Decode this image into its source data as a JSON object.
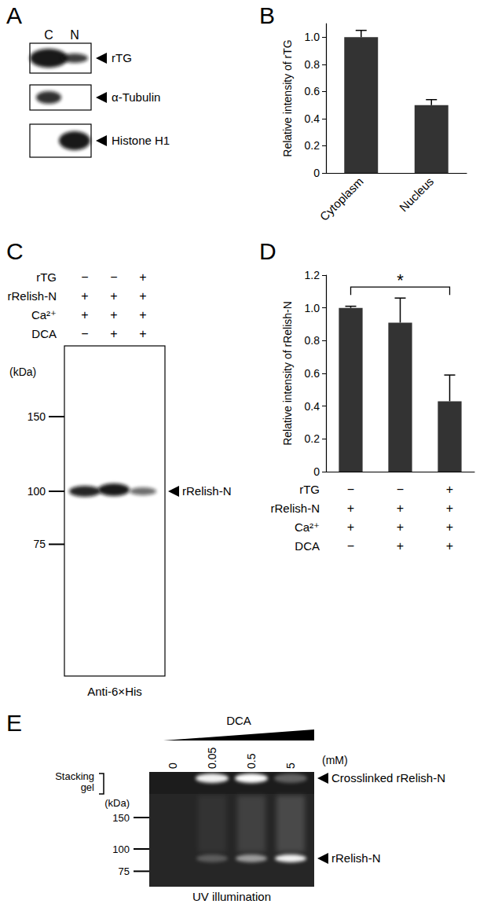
{
  "chart_data": [
    {
      "type": "bar",
      "panel": "B",
      "categories": [
        "Cytoplasm",
        "Nucleus"
      ],
      "values": [
        1.0,
        0.5
      ],
      "errors": [
        0.05,
        0.04
      ],
      "y_label": "Relative intensity of rTG",
      "ylim": [
        0,
        1.1
      ],
      "yticks": [
        0,
        0.2,
        0.4,
        0.6,
        0.8,
        {
          "value": 1,
          "label": "1.0"
        }
      ],
      "color": "#333333",
      "grid": false
    },
    {
      "type": "bar",
      "panel": "D",
      "categories": [
        null,
        null,
        null
      ],
      "values": [
        1.0,
        0.91,
        0.43
      ],
      "errors": [
        0.01,
        0.15,
        0.16
      ],
      "y_label": "Relative intensity of rRelish-N",
      "ylim": [
        0,
        1.2
      ],
      "yticks": [
        0,
        0.2,
        0.4,
        0.6,
        0.8,
        {
          "value": 1,
          "label": "1.0"
        },
        1.2
      ],
      "color": "#333333",
      "grid": false,
      "conditions": [
        {
          "label": "rTG",
          "marks": [
            "−",
            "−",
            "+"
          ]
        },
        {
          "label": "rRelish-N",
          "marks": [
            "+",
            "+",
            "+"
          ]
        },
        {
          "label": "Ca²⁺",
          "marks": [
            "+",
            "+",
            "+"
          ]
        },
        {
          "label": "DCA",
          "marks": [
            "−",
            "+",
            "+"
          ]
        }
      ],
      "significance": {
        "between": [
          0,
          2
        ],
        "label": "*"
      }
    }
  ],
  "blots": {
    "A": {
      "panel": "A",
      "lanes": [
        "C",
        "N"
      ],
      "rows": [
        {
          "label": "rTG",
          "present": [
            true,
            true
          ]
        },
        {
          "label": "α-Tubulin",
          "present": [
            true,
            false
          ]
        },
        {
          "label": "Histone H1",
          "present": [
            false,
            true
          ]
        }
      ]
    },
    "C": {
      "panel": "C",
      "conditions": [
        {
          "label": "rTG",
          "marks": [
            "−",
            "−",
            "+"
          ]
        },
        {
          "label": "rRelish-N",
          "marks": [
            "+",
            "+",
            "+"
          ]
        },
        {
          "label": "Ca²⁺",
          "marks": [
            "+",
            "+",
            "+"
          ]
        },
        {
          "label": "DCA",
          "marks": [
            "−",
            "+",
            "+"
          ]
        }
      ],
      "marker_unit": "(kDa)",
      "markers_kda": [
        150,
        100,
        75
      ],
      "band_label": "rRelish-N",
      "antibody": "Anti-6×His"
    },
    "E": {
      "panel": "E",
      "treatment": "DCA",
      "doses": [
        0,
        0.05,
        0.5,
        5
      ],
      "dose_unit": "(mM)",
      "stacking_label": [
        "Stacking",
        "gel"
      ],
      "marker_unit": "(kDa)",
      "markers_kda": [
        150,
        100,
        75
      ],
      "band_labels": [
        "Crosslinked rRelish-N",
        "rRelish-N"
      ],
      "method": "UV illumination"
    }
  }
}
